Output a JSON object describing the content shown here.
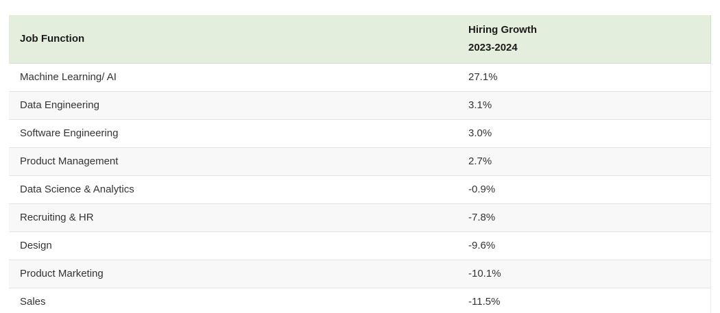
{
  "table": {
    "header": {
      "col1": "Job Function",
      "col2_line1": "Hiring Growth",
      "col2_line2": "2023-2024"
    },
    "rows": [
      {
        "job_function": "Machine Learning/ AI",
        "hiring_growth": "27.1%"
      },
      {
        "job_function": "Data Engineering",
        "hiring_growth": "3.1%"
      },
      {
        "job_function": "Software Engineering",
        "hiring_growth": "3.0%"
      },
      {
        "job_function": "Product Management",
        "hiring_growth": "2.7%"
      },
      {
        "job_function": "Data Science & Analytics",
        "hiring_growth": "-0.9%"
      },
      {
        "job_function": "Recruiting & HR",
        "hiring_growth": "-7.8%"
      },
      {
        "job_function": "Design",
        "hiring_growth": "-9.6%"
      },
      {
        "job_function": "Product Marketing",
        "hiring_growth": "-10.1%"
      },
      {
        "job_function": "Sales",
        "hiring_growth": "-11.5%"
      }
    ],
    "colors": {
      "header_bg": "#e3efdc",
      "alt_row_bg": "#f8f8f8",
      "row_border": "#e3e3e3",
      "header_text": "#1b1b1b",
      "body_text": "#333333"
    }
  },
  "chart_data": {
    "type": "table",
    "title": "",
    "columns": [
      "Job Function",
      "Hiring Growth 2023-2024"
    ],
    "categories": [
      "Machine Learning/ AI",
      "Data Engineering",
      "Software Engineering",
      "Product Management",
      "Data Science & Analytics",
      "Recruiting & HR",
      "Design",
      "Product Marketing",
      "Sales"
    ],
    "values": [
      27.1,
      3.1,
      3.0,
      2.7,
      -0.9,
      -7.8,
      -9.6,
      -10.1,
      -11.5
    ],
    "value_unit": "%",
    "layout_hints": {
      "header_background": "#e3efdc",
      "zebra_striping": true,
      "grid": "horizontal-only"
    }
  }
}
